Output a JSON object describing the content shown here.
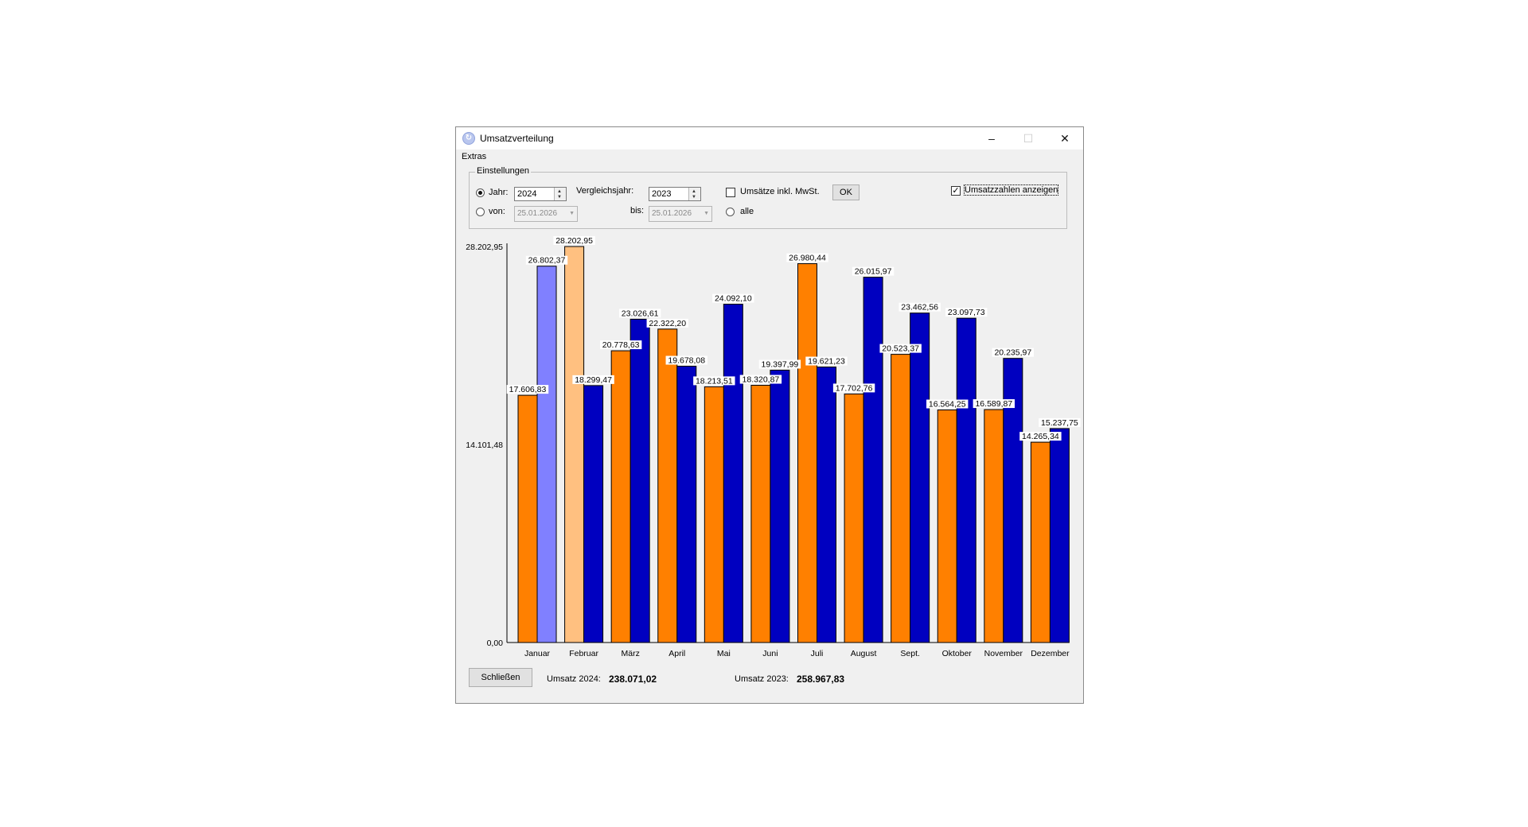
{
  "window": {
    "title": "Umsatzverteilung",
    "app_icon": "rotating-arrows-icon",
    "minimize": "–",
    "maximize": "☐",
    "close": "✕"
  },
  "menu": {
    "extras": "Extras"
  },
  "settings": {
    "legend": "Einstellungen",
    "jahr_label": "Jahr:",
    "jahr_value": "2024",
    "jahr_selected": true,
    "vergleichsjahr_label": "Vergleichsjahr:",
    "vergleichsjahr_value": "2023",
    "von_label": "von:",
    "von_value": "25.01.2026",
    "bis_label": "bis:",
    "bis_value": "25.01.2026",
    "mwst_label": "Umsätze inkl. MwSt.",
    "mwst_checked": false,
    "ok_label": "OK",
    "alle_label": "alle",
    "umsatzzahlen_label": "Umsatzzahlen anzeigen",
    "umsatzzahlen_checked": true
  },
  "footer": {
    "close_label": "Schließen",
    "umsatz_2024_label": "Umsatz 2024:",
    "umsatz_2024_value": "238.071,02",
    "umsatz_2023_label": "Umsatz 2023:",
    "umsatz_2023_value": "258.967,83"
  },
  "colors": {
    "series_2024": "#ff8000",
    "series_2023": "#0000c0",
    "series_2024_highlight": "#ffc080",
    "series_2023_highlight": "#8080ff"
  },
  "chart_data": {
    "type": "bar",
    "title": "",
    "xlabel": "",
    "ylabel": "",
    "ylim": [
      0,
      28202.95
    ],
    "yticks": [
      0,
      14101.48,
      28202.95
    ],
    "ytick_labels": [
      "0,00",
      "14.101,48",
      "28.202,95"
    ],
    "categories": [
      "Januar",
      "Februar",
      "März",
      "April",
      "Mai",
      "Juni",
      "Juli",
      "August",
      "Sept.",
      "Oktober",
      "November",
      "Dezember"
    ],
    "series": [
      {
        "values": [
          17606.83,
          28202.95,
          20778.63,
          22322.2,
          18213.51,
          18320.87,
          26980.44,
          17702.76,
          20523.37,
          16564.25,
          16589.87,
          14265.34
        ],
        "labels": [
          "17.606,83",
          "28.202,95",
          "20.778,63",
          "22.322,20",
          "18.213,51",
          "18.320,87",
          "26.980,44",
          "17.702,76",
          "20.523,37",
          "16.564,25",
          "16.589,87",
          "14.265,34"
        ],
        "highlight_index": 1
      },
      {
        "values": [
          26802.37,
          18299.47,
          23026.61,
          19678.08,
          24092.1,
          19397.99,
          19621.23,
          26015.97,
          23462.56,
          23097.73,
          20235.97,
          15237.75
        ],
        "labels": [
          "26.802,37",
          "18.299,47",
          "23.026,61",
          "19.678,08",
          "24.092,10",
          "19.397,99",
          "19.621,23",
          "26.015,97",
          "23.462,56",
          "23.097,73",
          "20.235,97",
          "15.237,75"
        ],
        "highlight_index": 0
      }
    ],
    "grid": false,
    "legend": "none"
  }
}
